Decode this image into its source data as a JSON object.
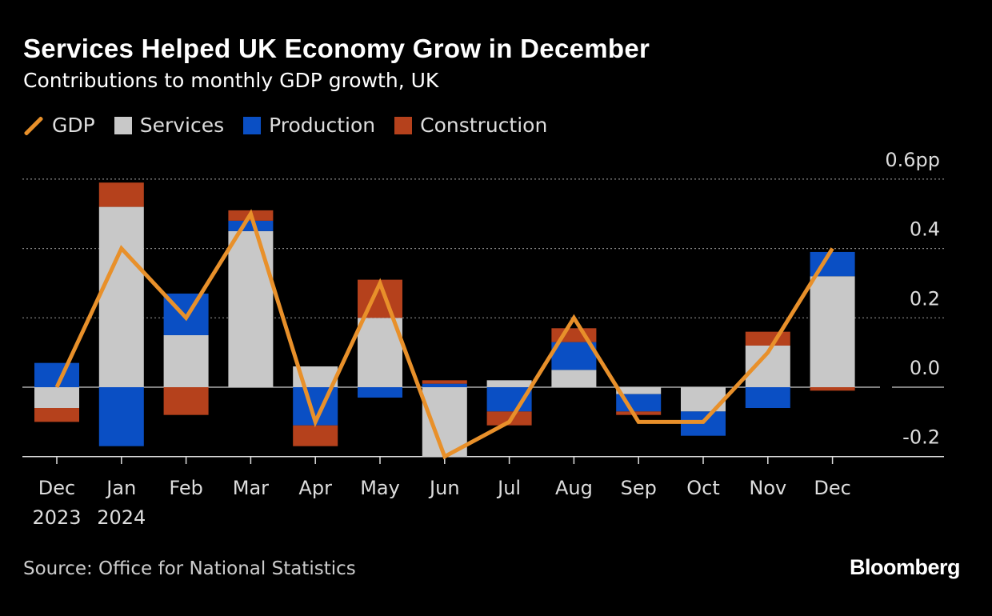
{
  "chart_data": {
    "type": "bar",
    "stacked": true,
    "title": "Services Helped UK Economy Grow in December",
    "subtitle": "Contributions to monthly GDP growth, UK",
    "categories": [
      [
        "Dec",
        "2023"
      ],
      [
        "Jan",
        "2024"
      ],
      [
        "Feb",
        ""
      ],
      [
        "Mar",
        ""
      ],
      [
        "Apr",
        ""
      ],
      [
        "May",
        ""
      ],
      [
        "Jun",
        ""
      ],
      [
        "Jul",
        ""
      ],
      [
        "Aug",
        ""
      ],
      [
        "Sep",
        ""
      ],
      [
        "Oct",
        ""
      ],
      [
        "Nov",
        ""
      ],
      [
        "Dec",
        ""
      ]
    ],
    "series": [
      {
        "name": "Services",
        "type": "bar",
        "color": "#c8c8c8",
        "values": [
          -0.06,
          0.52,
          0.15,
          0.45,
          0.06,
          0.2,
          -0.2,
          0.02,
          0.05,
          -0.02,
          -0.07,
          0.12,
          0.32
        ]
      },
      {
        "name": "Production",
        "type": "bar",
        "color": "#0a4fc4",
        "values": [
          0.07,
          -0.17,
          0.12,
          0.03,
          -0.11,
          -0.03,
          0.01,
          -0.07,
          0.08,
          -0.05,
          -0.07,
          -0.06,
          0.07
        ]
      },
      {
        "name": "Construction",
        "type": "bar",
        "color": "#b5411c",
        "values": [
          -0.04,
          0.07,
          -0.08,
          0.03,
          -0.06,
          0.11,
          0.01,
          -0.04,
          0.04,
          -0.01,
          0.0,
          0.04,
          -0.01
        ]
      },
      {
        "name": "GDP",
        "type": "line",
        "color": "#e8902a",
        "values": [
          0.0,
          0.4,
          0.2,
          0.5,
          -0.1,
          0.3,
          -0.2,
          -0.1,
          0.2,
          -0.1,
          -0.1,
          0.1,
          0.4
        ]
      }
    ],
    "yticks": [
      "0.6pp",
      "0.4",
      "0.2",
      "0.0",
      "-0.2"
    ],
    "ytick_values": [
      0.6,
      0.4,
      0.2,
      0.0,
      -0.2
    ],
    "ylim": [
      -0.2,
      0.6
    ],
    "yaxis_position": "right",
    "grid": "dotted horizontal",
    "legend_position": "top-left"
  },
  "legend": [
    "GDP",
    "Services",
    "Production",
    "Construction"
  ],
  "source": "Source: Office for National Statistics",
  "brand": "Bloomberg"
}
